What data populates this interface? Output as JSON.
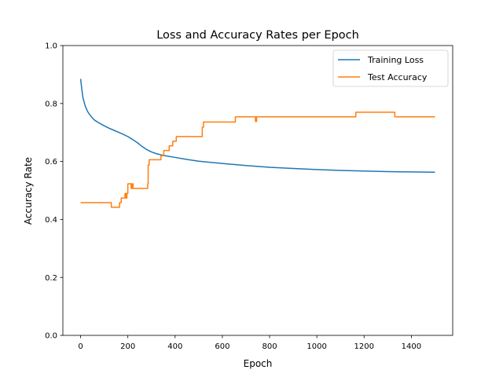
{
  "chart_data": {
    "type": "line",
    "title": "Loss and Accuracy Rates per Epoch",
    "xlabel": "Epoch",
    "ylabel": "Accuracy Rate",
    "xlim": [
      -75,
      1575
    ],
    "ylim": [
      0,
      1.0
    ],
    "xticks": [
      0,
      200,
      400,
      600,
      800,
      1000,
      1200,
      1400
    ],
    "yticks": [
      0.0,
      0.2,
      0.4,
      0.6,
      0.8,
      1.0
    ],
    "xtick_labels": [
      "0",
      "200",
      "400",
      "600",
      "800",
      "1000",
      "1200",
      "1400"
    ],
    "ytick_labels": [
      "0.0",
      "0.2",
      "0.4",
      "0.6",
      "0.8",
      "1.0"
    ],
    "grid": false,
    "legend_position": "upper-right",
    "series": [
      {
        "name": "Training Loss",
        "color": "#1f77b4",
        "style": "smooth",
        "points": [
          [
            0,
            0.885
          ],
          [
            5,
            0.85
          ],
          [
            10,
            0.82
          ],
          [
            20,
            0.79
          ],
          [
            30,
            0.772
          ],
          [
            40,
            0.76
          ],
          [
            50,
            0.75
          ],
          [
            60,
            0.742
          ],
          [
            80,
            0.732
          ],
          [
            100,
            0.723
          ],
          [
            120,
            0.715
          ],
          [
            140,
            0.708
          ],
          [
            160,
            0.701
          ],
          [
            180,
            0.694
          ],
          [
            200,
            0.686
          ],
          [
            220,
            0.676
          ],
          [
            240,
            0.665
          ],
          [
            260,
            0.652
          ],
          [
            280,
            0.641
          ],
          [
            300,
            0.633
          ],
          [
            320,
            0.627
          ],
          [
            350,
            0.621
          ],
          [
            400,
            0.614
          ],
          [
            450,
            0.607
          ],
          [
            500,
            0.601
          ],
          [
            600,
            0.593
          ],
          [
            700,
            0.586
          ],
          [
            800,
            0.58
          ],
          [
            900,
            0.576
          ],
          [
            1000,
            0.572
          ],
          [
            1100,
            0.569
          ],
          [
            1200,
            0.567
          ],
          [
            1300,
            0.565
          ],
          [
            1400,
            0.564
          ],
          [
            1500,
            0.563
          ]
        ]
      },
      {
        "name": "Test Accuracy",
        "color": "#ff7f0e",
        "style": "step",
        "points": [
          [
            0,
            0.458
          ],
          [
            130,
            0.458
          ],
          [
            130,
            0.442
          ],
          [
            165,
            0.442
          ],
          [
            165,
            0.458
          ],
          [
            172,
            0.458
          ],
          [
            172,
            0.474
          ],
          [
            188,
            0.474
          ],
          [
            188,
            0.49
          ],
          [
            192,
            0.49
          ],
          [
            192,
            0.474
          ],
          [
            196,
            0.474
          ],
          [
            196,
            0.49
          ],
          [
            200,
            0.49
          ],
          [
            200,
            0.523
          ],
          [
            214,
            0.523
          ],
          [
            214,
            0.507
          ],
          [
            218,
            0.507
          ],
          [
            218,
            0.523
          ],
          [
            222,
            0.523
          ],
          [
            222,
            0.507
          ],
          [
            284,
            0.507
          ],
          [
            284,
            0.523
          ],
          [
            286,
            0.523
          ],
          [
            286,
            0.588
          ],
          [
            290,
            0.588
          ],
          [
            290,
            0.606
          ],
          [
            340,
            0.606
          ],
          [
            340,
            0.62
          ],
          [
            352,
            0.62
          ],
          [
            352,
            0.638
          ],
          [
            375,
            0.638
          ],
          [
            375,
            0.654
          ],
          [
            390,
            0.654
          ],
          [
            390,
            0.67
          ],
          [
            405,
            0.67
          ],
          [
            405,
            0.686
          ],
          [
            515,
            0.686
          ],
          [
            515,
            0.718
          ],
          [
            520,
            0.718
          ],
          [
            520,
            0.736
          ],
          [
            655,
            0.736
          ],
          [
            655,
            0.754
          ],
          [
            740,
            0.754
          ],
          [
            740,
            0.738
          ],
          [
            745,
            0.738
          ],
          [
            745,
            0.754
          ],
          [
            1165,
            0.754
          ],
          [
            1165,
            0.77
          ],
          [
            1330,
            0.77
          ],
          [
            1330,
            0.754
          ],
          [
            1500,
            0.754
          ]
        ]
      }
    ]
  }
}
